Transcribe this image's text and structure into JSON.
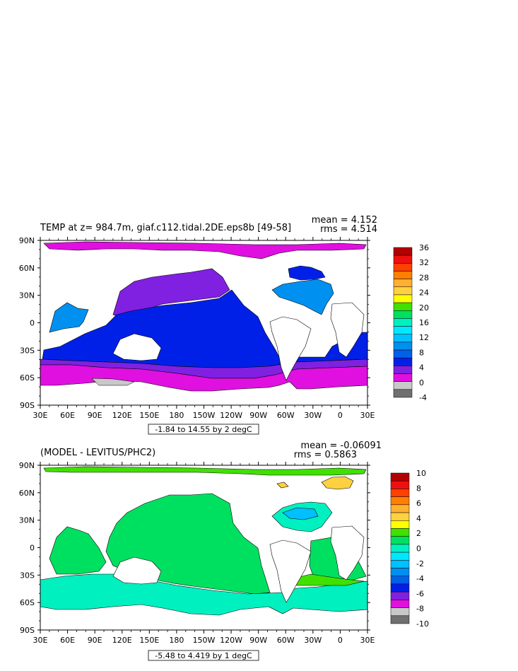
{
  "chart_data": [
    {
      "type": "heatmap",
      "title": "TEMP at z= 984.7m, giaf.c112.tidal.2DE.eps8b [49-58]",
      "stats": {
        "mean": "mean = 4.152",
        "rms": "rms = 4.514"
      },
      "range_label": "-1.84 to 14.55 by 2 degC",
      "x_ticks": [
        "30E",
        "60E",
        "90E",
        "120E",
        "150E",
        "180",
        "150W",
        "120W",
        "90W",
        "60W",
        "30W",
        "0",
        "30E"
      ],
      "y_ticks": [
        "90N",
        "60N",
        "30N",
        "0",
        "30S",
        "60S",
        "90S"
      ],
      "colorbar": {
        "labels": [
          "36",
          "32",
          "28",
          "24",
          "20",
          "16",
          "12",
          "8",
          "4",
          "0",
          "-4"
        ],
        "colors": [
          "#b40000",
          "#ee1010",
          "#ff4000",
          "#ff7f00",
          "#ffb030",
          "#ffd040",
          "#ffff00",
          "#40e000",
          "#00e060",
          "#00f0c0",
          "#00e8ff",
          "#00c0ff",
          "#0090f0",
          "#0060e8",
          "#0020e8",
          "#8020e0",
          "#e010e0",
          "#c8c8c8",
          "#707070"
        ]
      }
    },
    {
      "type": "heatmap",
      "title": "(MODEL - LEVITUS/PHC2)",
      "stats": {
        "mean": "mean = -0.06091",
        "rms": "rms = 0.5863"
      },
      "range_label": "-5.48 to 4.419 by 1 degC",
      "x_ticks": [
        "30E",
        "60E",
        "90E",
        "120E",
        "150E",
        "180",
        "150W",
        "120W",
        "90W",
        "60W",
        "30W",
        "0",
        "30E"
      ],
      "y_ticks": [
        "90N",
        "60N",
        "30N",
        "0",
        "30S",
        "60S",
        "90S"
      ],
      "colorbar": {
        "labels": [
          "10",
          "8",
          "6",
          "4",
          "2",
          "0",
          "-2",
          "-4",
          "-6",
          "-8",
          "-10"
        ],
        "colors": [
          "#b40000",
          "#ee1010",
          "#ff4000",
          "#ff7f00",
          "#ffb030",
          "#ffd040",
          "#ffff00",
          "#40e000",
          "#00e060",
          "#00f0c0",
          "#00e8ff",
          "#00c0ff",
          "#0090f0",
          "#0060e8",
          "#0020e8",
          "#8020e0",
          "#e010e0",
          "#c8c8c8",
          "#707070"
        ]
      }
    }
  ]
}
